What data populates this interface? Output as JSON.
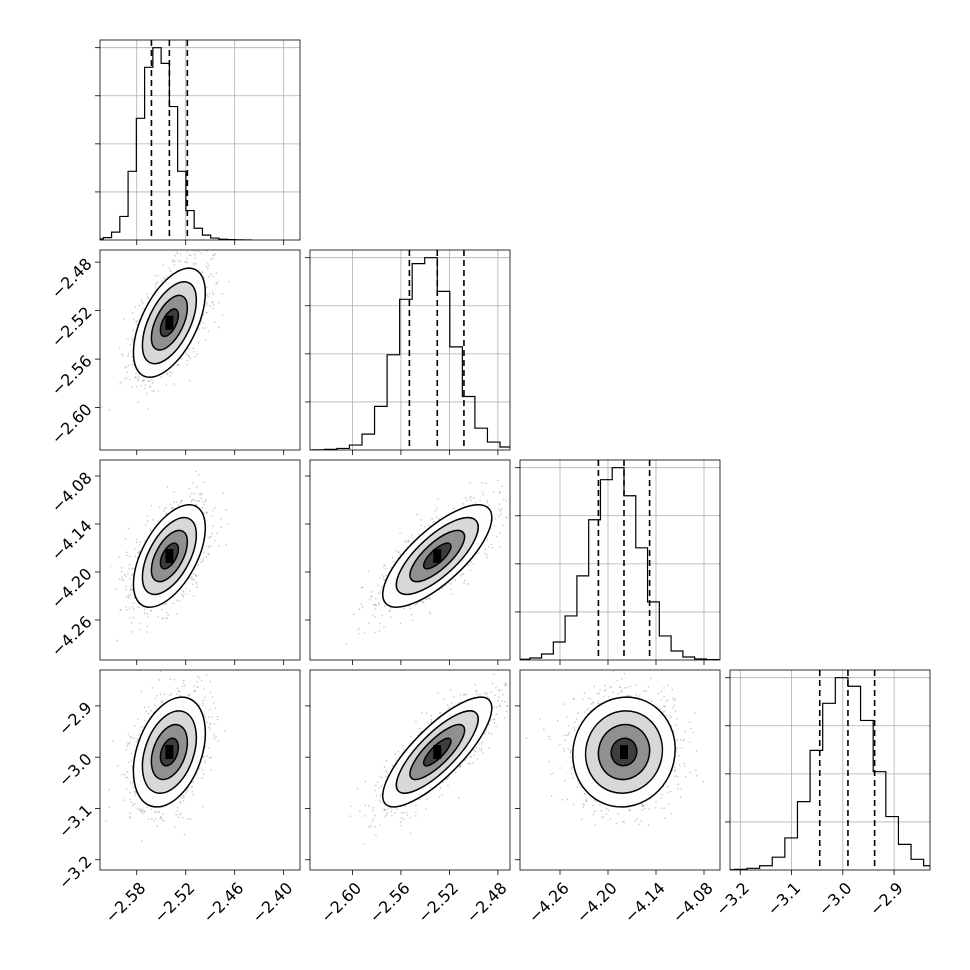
{
  "chart_data": {
    "type": "corner",
    "n_params": 4,
    "params": [
      {
        "median": -2.54,
        "q16": -2.562,
        "q84": -2.518,
        "range": [
          -2.625,
          -2.38
        ],
        "ticks": [
          -2.58,
          -2.52,
          -2.46,
          -2.4
        ],
        "tick_labels": [
          "−2.58",
          "−2.52",
          "−2.46",
          "−2.40"
        ]
      },
      {
        "median": -2.53,
        "q16": -2.553,
        "q84": -2.508,
        "range": [
          -2.635,
          -2.47
        ],
        "ticks": [
          -2.6,
          -2.56,
          -2.52,
          -2.48
        ],
        "tick_labels": [
          "−2.60",
          "−2.56",
          "−2.52",
          "−2.48"
        ]
      },
      {
        "median": -4.18,
        "q16": -4.212,
        "q84": -4.148,
        "range": [
          -4.31,
          -4.06
        ],
        "ticks": [
          -4.26,
          -4.2,
          -4.14,
          -4.08
        ],
        "tick_labels": [
          "−4.26",
          "−4.20",
          "−4.14",
          "−4.08"
        ]
      },
      {
        "median": -2.99,
        "q16": -3.045,
        "q84": -2.938,
        "range": [
          -3.22,
          -2.83
        ],
        "ticks": [
          -3.2,
          -3.1,
          -3.0,
          -2.9
        ],
        "tick_labels": [
          "−3.2",
          "−3.1",
          "−3.0",
          "−2.9"
        ]
      }
    ],
    "histograms": [
      {
        "counts": [
          2,
          5,
          12,
          40,
          120,
          350,
          620,
          880,
          980,
          900,
          680,
          350,
          150,
          60,
          25,
          10,
          4,
          2,
          1,
          0
        ]
      },
      {
        "counts": [
          1,
          3,
          8,
          25,
          80,
          220,
          480,
          760,
          940,
          970,
          800,
          520,
          270,
          110,
          40,
          15,
          5,
          2,
          1,
          0
        ]
      },
      {
        "counts": [
          1,
          4,
          10,
          30,
          90,
          220,
          420,
          700,
          900,
          960,
          820,
          560,
          290,
          120,
          45,
          15,
          5,
          2,
          1,
          0
        ]
      },
      {
        "counts": [
          1,
          3,
          8,
          20,
          60,
          150,
          320,
          560,
          780,
          900,
          860,
          700,
          460,
          250,
          120,
          50,
          20,
          8,
          3,
          1
        ]
      }
    ],
    "pairs": [
      {
        "row": 1,
        "col": 0,
        "corr": 0.55
      },
      {
        "row": 2,
        "col": 0,
        "corr": 0.55
      },
      {
        "row": 2,
        "col": 1,
        "corr": 0.75
      },
      {
        "row": 3,
        "col": 0,
        "corr": 0.35
      },
      {
        "row": 3,
        "col": 1,
        "corr": 0.8
      },
      {
        "row": 3,
        "col": 2,
        "corr": 0.05
      }
    ],
    "contour_levels": [
      0.5,
      1.0,
      1.5,
      2.0
    ],
    "colors": {
      "ink": "#000000",
      "grid": "#b0b0b0",
      "scatter": "#9a9a9a"
    }
  }
}
